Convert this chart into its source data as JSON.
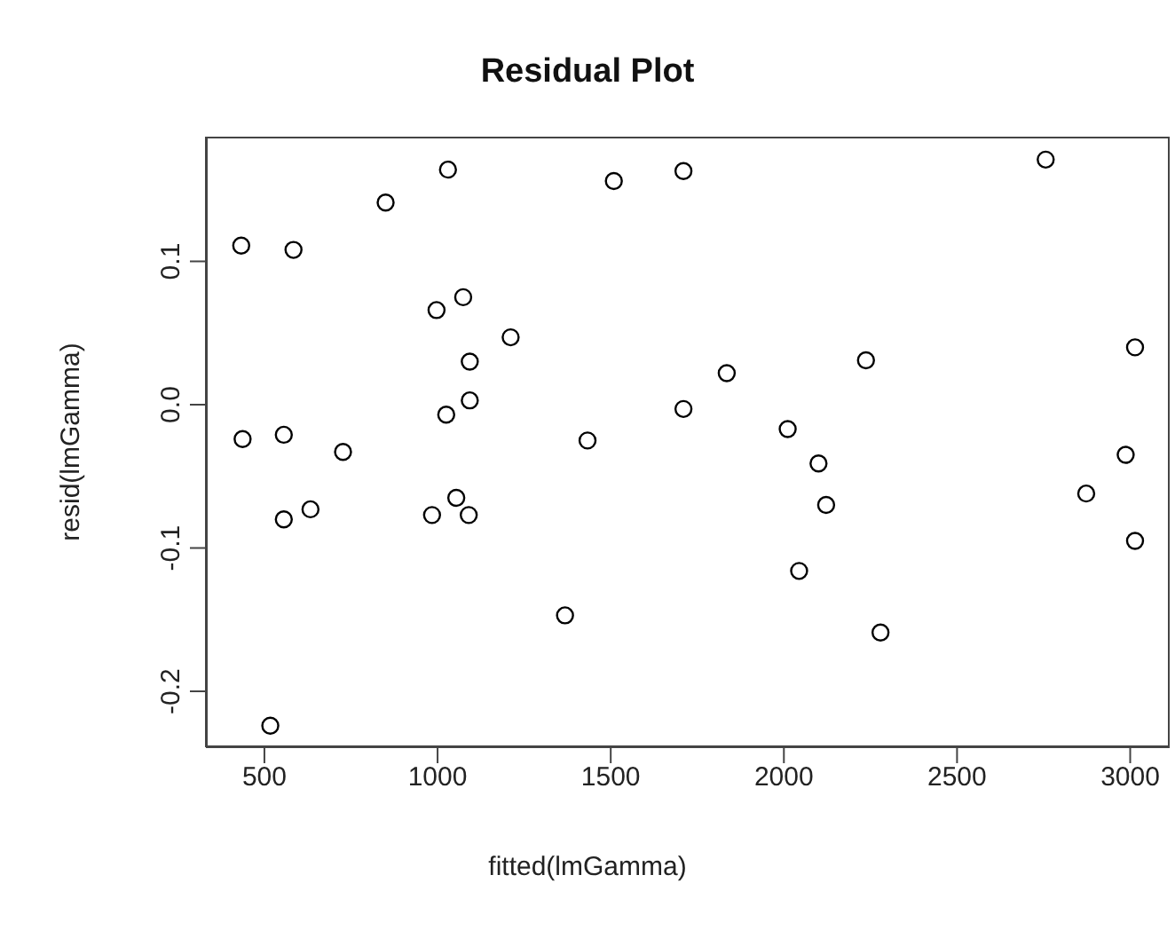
{
  "chart_data": {
    "type": "scatter",
    "title": "Residual Plot",
    "xlabel": "fitted(lmGamma)",
    "ylabel": "resid(lmGamma)",
    "x": [
      433,
      584,
      850,
      1030,
      1509,
      997,
      1074,
      1211,
      1093,
      1093,
      1025,
      437,
      556,
      727,
      1433,
      556,
      633,
      984,
      1054,
      1090,
      1368,
      517,
      1710,
      2756,
      3014,
      2237,
      1835,
      1710,
      2011,
      2100,
      2122,
      2987,
      2873,
      3014,
      2044,
      2279
    ],
    "values": [
      0.111,
      0.108,
      0.141,
      0.164,
      0.156,
      0.066,
      0.075,
      0.047,
      0.03,
      0.003,
      -0.007,
      -0.024,
      -0.021,
      -0.033,
      -0.025,
      -0.08,
      -0.073,
      -0.077,
      -0.065,
      -0.077,
      -0.147,
      -0.224,
      0.163,
      0.171,
      0.04,
      0.031,
      0.022,
      -0.003,
      -0.017,
      -0.041,
      -0.07,
      -0.035,
      -0.062,
      -0.095,
      -0.116,
      -0.159
    ],
    "color": "#000000",
    "marker": "circle",
    "xlim": [
      331,
      3114
    ],
    "ylim": [
      -0.239,
      0.187
    ],
    "xticks": [
      500,
      1000,
      1500,
      2000,
      2500,
      3000
    ],
    "yticks": [
      -0.2,
      -0.1,
      {
        "value": 0,
        "label": "0.0"
      },
      0.1
    ]
  }
}
